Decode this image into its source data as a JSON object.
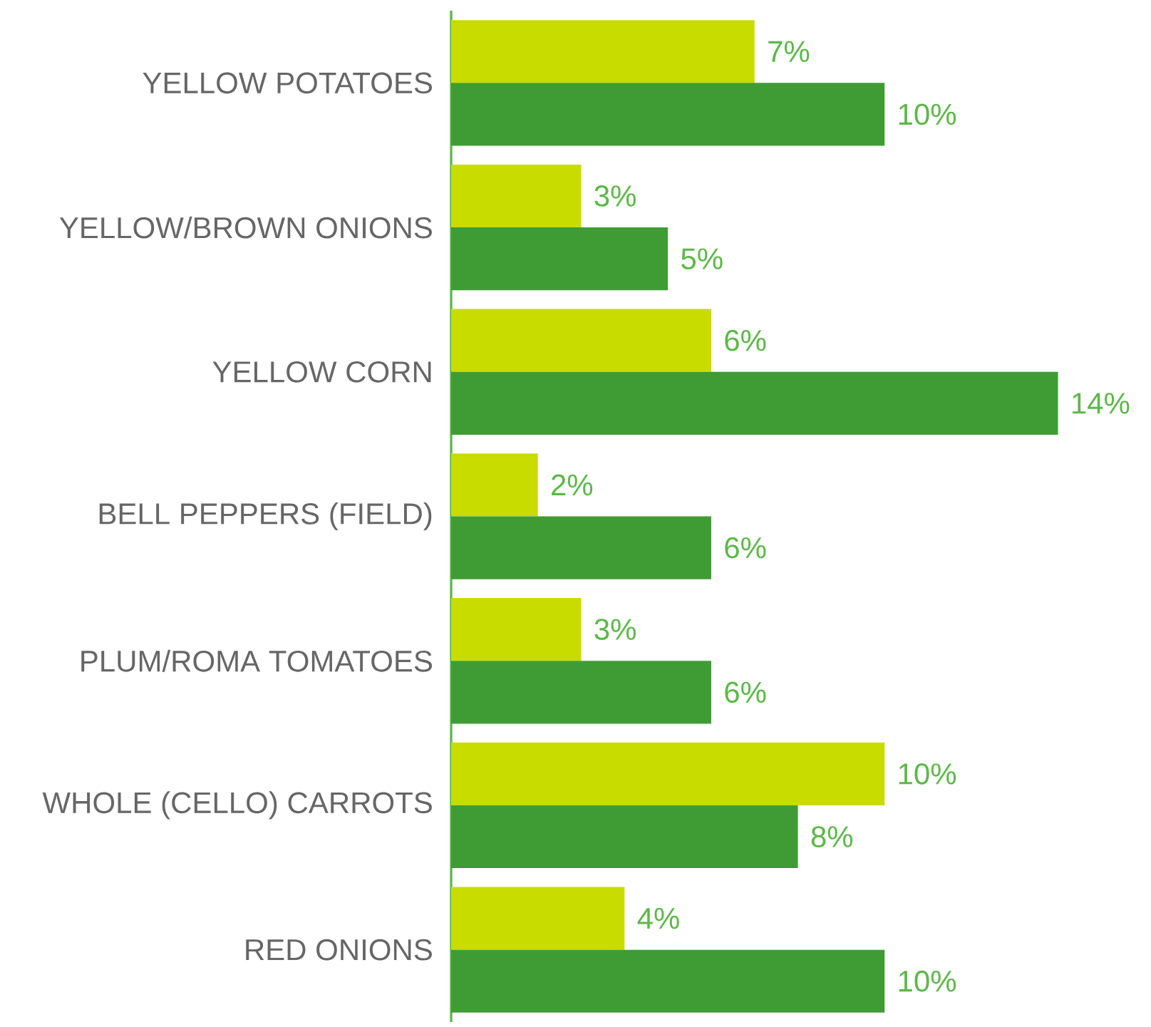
{
  "chart_data": {
    "type": "bar",
    "orientation": "horizontal",
    "categories": [
      "YELLOW POTATOES",
      "YELLOW/BROWN ONIONS",
      "YELLOW CORN",
      "BELL PEPPERS (FIELD)",
      "PLUM/ROMA TOMATOES",
      "WHOLE (CELLO) CARROTS",
      "RED ONIONS"
    ],
    "series": [
      {
        "color": "#c8dc00",
        "values": [
          7,
          3,
          6,
          2,
          3,
          10,
          4
        ],
        "value_labels": [
          "7%",
          "3%",
          "6%",
          "2%",
          "3%",
          "10%",
          "4%"
        ]
      },
      {
        "color": "#3f9c35",
        "values": [
          10,
          5,
          14,
          6,
          6,
          8,
          10
        ],
        "value_labels": [
          "10%",
          "5%",
          "14%",
          "6%",
          "6%",
          "8%",
          "10%"
        ]
      }
    ]
  }
}
